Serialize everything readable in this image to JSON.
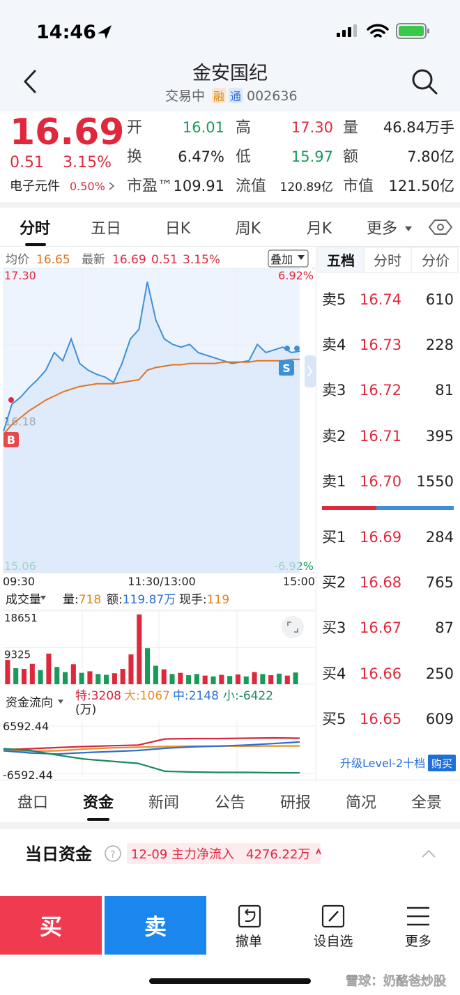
{
  "status_bar": {
    "time": "14:46"
  },
  "header": {
    "title": "金安国纪",
    "status": "交易中",
    "tags": [
      "融",
      "通"
    ],
    "code": "002636"
  },
  "quote": {
    "price": "16.69",
    "change": "0.51",
    "change_pct": "3.15%",
    "sector": "电子元件",
    "sector_pct": "0.50%",
    "stats": [
      {
        "label": "开",
        "value": "16.01"
      },
      {
        "label": "高",
        "value": "17.30"
      },
      {
        "label": "量",
        "value": "46.84万手"
      },
      {
        "label": "换",
        "value": "6.47%"
      },
      {
        "label": "低",
        "value": "15.97"
      },
      {
        "label": "额",
        "value": "7.80亿"
      },
      {
        "label": "市盈™",
        "value": "109.91"
      },
      {
        "label": "流值",
        "value": "120.89亿"
      },
      {
        "label": "市值",
        "value": "121.50亿"
      }
    ]
  },
  "tabs": [
    "分时",
    "五日",
    "日K",
    "周K",
    "月K",
    "更多"
  ],
  "chart_data": [
    {
      "type": "line",
      "avg": "16.65",
      "last": "16.69",
      "change": "0.51",
      "change_pct": "3.15%",
      "overlay_button": "叠加",
      "ylim": [
        15.06,
        17.3
      ],
      "yticks": [
        {
          "value": 17.3,
          "label": "17.30"
        },
        16.18,
        15.06
      ],
      "y2lim": [
        -6.92,
        6.92
      ],
      "y2ticks": [
        {
          "value": 6.92,
          "label": "6.92%"
        },
        {
          "value": -6.92,
          "label": "-6.92%"
        }
      ],
      "x_labels": [
        "09:30",
        "11:30/13:00",
        "15:00"
      ],
      "markers": [
        "B",
        "S"
      ],
      "series": [
        {
          "name": "最新",
          "color": "#3d8fd8",
          "values": [
            16.1,
            16.3,
            16.35,
            16.42,
            16.48,
            16.55,
            16.68,
            16.62,
            16.78,
            16.6,
            16.55,
            16.52,
            16.5,
            16.46,
            16.6,
            16.78,
            16.85,
            17.2,
            16.92,
            16.78,
            16.74,
            16.72,
            16.74,
            16.68,
            16.66,
            16.64,
            16.62,
            16.6,
            16.61,
            16.62,
            16.74,
            16.68,
            16.7,
            16.72,
            16.68,
            16.69
          ]
        },
        {
          "name": "均价",
          "color": "#e0741f",
          "values": [
            16.08,
            16.15,
            16.2,
            16.25,
            16.29,
            16.33,
            16.36,
            16.39,
            16.41,
            16.43,
            16.44,
            16.45,
            16.45,
            16.45,
            16.46,
            16.47,
            16.48,
            16.55,
            16.57,
            16.58,
            16.59,
            16.59,
            16.6,
            16.6,
            16.6,
            16.6,
            16.61,
            16.61,
            16.61,
            16.61,
            16.62,
            16.62,
            16.62,
            16.62,
            16.63,
            16.63
          ]
        }
      ]
    },
    {
      "type": "bar",
      "title": "成交量",
      "stats": [
        {
          "label": "量:",
          "value": "718"
        },
        {
          "label": "额:",
          "value": "119.87万"
        },
        {
          "label": "现手:",
          "value": "119"
        }
      ],
      "ylim": [
        0,
        18651
      ],
      "yticks": [
        18651,
        9325
      ],
      "values": [
        6200,
        4100,
        3900,
        5200,
        3600,
        7800,
        4400,
        3100,
        5100,
        2900,
        3300,
        2600,
        2400,
        2800,
        3900,
        7600,
        17800,
        9200,
        4700,
        3800,
        2600,
        2900,
        2300,
        2600,
        2200,
        2000,
        2400,
        2100,
        2500,
        2000,
        3100,
        2600,
        2300,
        2700,
        2200,
        3000
      ],
      "colors": [
        "#e0283c",
        "#1a9a5a",
        "#e0283c",
        "#e0283c",
        "#1a9a5a",
        "#e0283c",
        "#1a9a5a",
        "#1a9a5a",
        "#e0283c",
        "#1a9a5a",
        "#e0283c",
        "#1a9a5a",
        "#1a9a5a",
        "#e0283c",
        "#e0283c",
        "#e0283c",
        "#e0283c",
        "#1a9a5a",
        "#1a9a5a",
        "#e0283c",
        "#1a9a5a",
        "#e0283c",
        "#1a9a5a",
        "#1a9a5a",
        "#e0283c",
        "#1a9a5a",
        "#e0283c",
        "#1a9a5a",
        "#e0283c",
        "#1a9a5a",
        "#e0283c",
        "#1a9a5a",
        "#e0283c",
        "#1a9a5a",
        "#e0283c",
        "#1a9a5a"
      ]
    },
    {
      "type": "line",
      "title": "资金流向",
      "unit": "(万)",
      "legend": [
        {
          "text": "特:3208",
          "color": "#d7263d"
        },
        {
          "text": "大:1067",
          "color": "#e5902a"
        },
        {
          "text": "中:2148",
          "color": "#2a6fd6"
        },
        {
          "text": "小:-6422",
          "color": "#1a8a5a"
        }
      ],
      "ylim": [
        -6592.44,
        6592.44
      ],
      "yticks": [
        6592.44,
        -6592.44
      ],
      "series": [
        {
          "color": "#d7263d",
          "values": [
            0,
            300,
            600,
            900,
            1100,
            1300,
            3000,
            3100,
            3100,
            3200,
            3300,
            3208
          ]
        },
        {
          "color": "#e5902a",
          "values": [
            -200,
            -400,
            -300,
            200,
            500,
            700,
            900,
            1000,
            1000,
            1000,
            1050,
            1067
          ]
        },
        {
          "color": "#2a6fd6",
          "values": [
            -300,
            -900,
            -1200,
            -800,
            -500,
            -200,
            400,
            800,
            1000,
            1300,
            1700,
            2148
          ]
        },
        {
          "color": "#1a8a5a",
          "values": [
            300,
            -200,
            -1500,
            -2600,
            -3200,
            -3800,
            -6000,
            -6200,
            -6300,
            -6300,
            -6400,
            -6422
          ]
        }
      ]
    }
  ],
  "order_book": {
    "tabs": [
      "五档",
      "分时",
      "分价"
    ],
    "asks": [
      {
        "label": "卖5",
        "price": "16.74",
        "volume": "610"
      },
      {
        "label": "卖4",
        "price": "16.73",
        "volume": "228"
      },
      {
        "label": "卖3",
        "price": "16.72",
        "volume": "81"
      },
      {
        "label": "卖2",
        "price": "16.71",
        "volume": "395"
      },
      {
        "label": "卖1",
        "price": "16.70",
        "volume": "1550"
      }
    ],
    "bids": [
      {
        "label": "买1",
        "price": "16.69",
        "volume": "284"
      },
      {
        "label": "买2",
        "price": "16.68",
        "volume": "765"
      },
      {
        "label": "买3",
        "price": "16.67",
        "volume": "87"
      },
      {
        "label": "买4",
        "price": "16.66",
        "volume": "250"
      },
      {
        "label": "买5",
        "price": "16.65",
        "volume": "609"
      }
    ],
    "upgrade": "升级Level-2十档",
    "buy_button": "购买"
  },
  "detail_tabs": [
    "盘口",
    "资金",
    "新闻",
    "公告",
    "研报",
    "简况",
    "全景"
  ],
  "capital": {
    "title": "当日资金",
    "date": "12-09",
    "label": "主力净流入",
    "value": "4276.22万"
  },
  "actions": {
    "buy": "买",
    "sell": "卖",
    "items": [
      "撤单",
      "设自选",
      "更多"
    ]
  },
  "watermark": "雪球：奶酪爸炒股"
}
